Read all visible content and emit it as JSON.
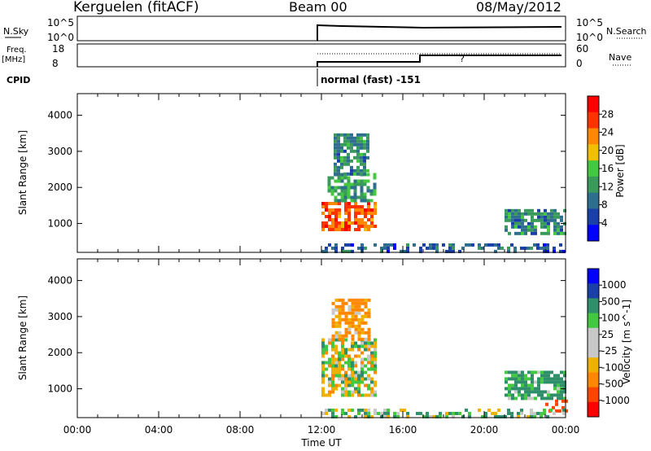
{
  "header": {
    "station": "Kerguelen (fitACF)",
    "beam": "Beam 00",
    "date": "08/May/2012"
  },
  "side_labels": {
    "nsky": "N.Sky",
    "nsearch": "N.Search",
    "freq": "Freq.",
    "freq_unit": "[MHz]",
    "nave": "Nave",
    "cpid": "CPID"
  },
  "cpid_text": "normal (fast) -151",
  "noise_axis": {
    "top_left": "10^5",
    "bottom_left": "10^0",
    "top_right": "10^5",
    "bottom_right": "10^0"
  },
  "freq_axis": {
    "top_left": "18",
    "bottom_left": "8",
    "top_right": "60",
    "bottom_right": "0"
  },
  "colors": {
    "power_scale": [
      "#0000ff",
      "#1a3fa8",
      "#2e6e8e",
      "#3a9a5c",
      "#44c840",
      "#f0c000",
      "#ff8800",
      "#ff3300",
      "#ff0000"
    ],
    "velocity_scale": [
      "#ff0000",
      "#ff4400",
      "#ff8800",
      "#f0b000",
      "#c8c8c8",
      "#c8c8c8",
      "#44c840",
      "#2e8f6a",
      "#1a3fa8",
      "#0000ff"
    ]
  },
  "chart_data": [
    {
      "type": "heatmap",
      "title": "Power",
      "ylabel": "Slant Range [km]",
      "xlabel": "",
      "colorbar_label": "Power [dB]",
      "colorbar_ticks": [
        "4",
        "8",
        "12",
        "16",
        "20",
        "24",
        "28"
      ],
      "xlim_hours": [
        0,
        24
      ],
      "ylim": [
        200,
        4600
      ],
      "y_ticks": [
        "1000",
        "2000",
        "3000",
        "4000"
      ],
      "regions": [
        {
          "t0": 12.0,
          "t1": 14.6,
          "r0": 800,
          "r1": 1600,
          "value": 26
        },
        {
          "t0": 12.3,
          "t1": 14.6,
          "r0": 1600,
          "r1": 2400,
          "value": 12
        },
        {
          "t0": 12.6,
          "t1": 14.3,
          "r0": 2400,
          "r1": 3500,
          "value": 10
        },
        {
          "t0": 21.0,
          "t1": 24.0,
          "r0": 700,
          "r1": 1400,
          "value": 10
        },
        {
          "t0": 12.0,
          "t1": 24.0,
          "r0": 200,
          "r1": 450,
          "value": 6
        }
      ]
    },
    {
      "type": "heatmap",
      "title": "Velocity",
      "ylabel": "Slant Range [km]",
      "xlabel": "Time UT",
      "colorbar_label": "Velocity [m s^-1]",
      "colorbar_ticks": [
        "-1000",
        "-500",
        "-100",
        "-25",
        "25",
        "100",
        "500",
        "1000"
      ],
      "x_ticks": [
        "00:00",
        "04:00",
        "08:00",
        "12:00",
        "16:00",
        "20:00",
        "00:00"
      ],
      "xlim_hours": [
        0,
        24
      ],
      "ylim": [
        200,
        4600
      ],
      "y_ticks": [
        "1000",
        "2000",
        "3000",
        "4000"
      ],
      "regions": [
        {
          "t0": 12.0,
          "t1": 14.6,
          "r0": 800,
          "r1": 2400,
          "value": 0
        },
        {
          "t0": 12.5,
          "t1": 14.3,
          "r0": 2400,
          "r1": 3500,
          "value": -150
        },
        {
          "t0": 21.0,
          "t1": 24.0,
          "r0": 700,
          "r1": 1500,
          "value": 150
        },
        {
          "t0": 23.0,
          "t1": 24.0,
          "r0": 400,
          "r1": 700,
          "value": -700
        },
        {
          "t0": 12.0,
          "t1": 24.0,
          "r0": 200,
          "r1": 450,
          "value": 80
        }
      ]
    }
  ]
}
